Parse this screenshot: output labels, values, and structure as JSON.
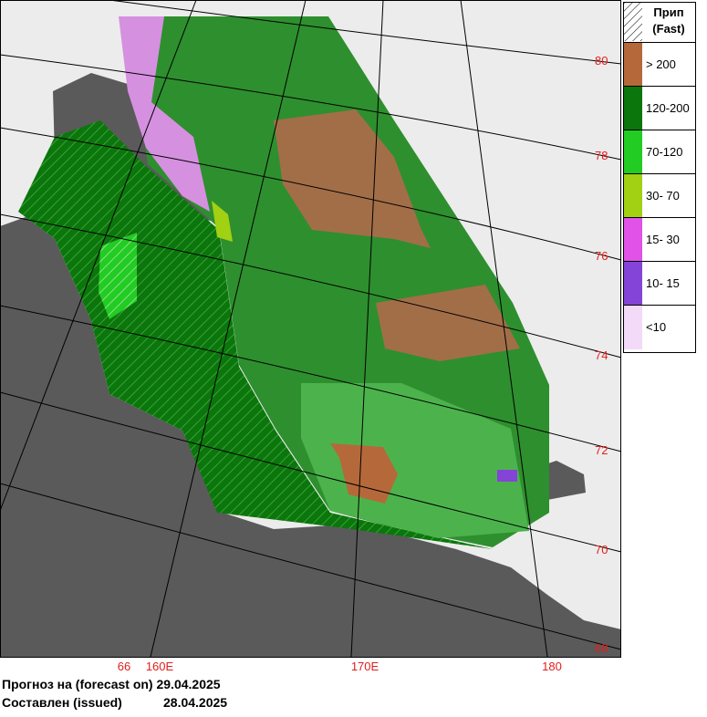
{
  "map": {
    "latitude_labels": [
      "80",
      "78",
      "76",
      "74",
      "72",
      "70",
      "68"
    ],
    "longitude_labels": [
      "66",
      "160E",
      "170E",
      "180"
    ]
  },
  "legend": {
    "fast": [
      "Прип",
      "(Fast)"
    ],
    "classes": [
      {
        "label": "> 200",
        "color": "#b5693a"
      },
      {
        "label": "120-200",
        "color": "#0b760b"
      },
      {
        "label": "70-120",
        "color": "#22cc22"
      },
      {
        "label": "30- 70",
        "color": "#a2d012"
      },
      {
        "label": "15- 30",
        "color": "#e052e8"
      },
      {
        "label": "10- 15",
        "color": "#8444d8"
      },
      {
        "label": "<10",
        "color": "#f2daf8"
      }
    ]
  },
  "footer": {
    "forecast_label": "Прогноз на (forecast on)",
    "forecast_date": "29.04.2025",
    "issued_label": "Составлен (issued)",
    "issued_date": "28.04.2025"
  }
}
